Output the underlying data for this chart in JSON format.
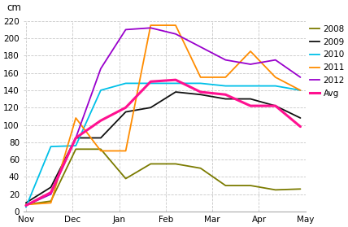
{
  "title": "cm",
  "background_color": "#ffffff",
  "grid_color": "#c8c8c8",
  "ylim": [
    0,
    220
  ],
  "yticks": [
    0,
    20,
    40,
    60,
    80,
    100,
    120,
    140,
    160,
    180,
    200,
    220
  ],
  "series": {
    "2008": {
      "color": "#7b7b00",
      "linewidth": 1.3,
      "x": [
        0,
        0.5,
        1,
        1.5,
        2,
        2.5,
        3,
        3.5,
        4,
        4.5,
        5,
        5.5
      ],
      "y": [
        8,
        12,
        72,
        72,
        38,
        55,
        55,
        50,
        30,
        30,
        25,
        26
      ]
    },
    "2009": {
      "color": "#111111",
      "linewidth": 1.3,
      "x": [
        0,
        0.5,
        1,
        1.5,
        2,
        2.5,
        3,
        3.5,
        4,
        4.5,
        5,
        5.5
      ],
      "y": [
        10,
        28,
        85,
        85,
        115,
        120,
        138,
        135,
        130,
        130,
        122,
        108
      ]
    },
    "2010": {
      "color": "#00c0e8",
      "linewidth": 1.3,
      "x": [
        0,
        0.5,
        1,
        1.5,
        2,
        2.5,
        3,
        3.5,
        4,
        4.5,
        5,
        5.5
      ],
      "y": [
        5,
        75,
        76,
        140,
        148,
        148,
        148,
        148,
        145,
        145,
        145,
        140
      ]
    },
    "2011": {
      "color": "#ff8c00",
      "linewidth": 1.3,
      "x": [
        0,
        0.5,
        1,
        1.5,
        2,
        2.5,
        3,
        3.5,
        4,
        4.5,
        5,
        5.5
      ],
      "y": [
        8,
        10,
        108,
        70,
        70,
        215,
        215,
        155,
        155,
        185,
        155,
        140
      ]
    },
    "2012": {
      "color": "#9900cc",
      "linewidth": 1.3,
      "x": [
        0,
        0.5,
        1,
        1.5,
        2,
        2.5,
        3,
        3.5,
        4,
        4.5,
        5,
        5.5
      ],
      "y": [
        7,
        20,
        85,
        165,
        210,
        212,
        205,
        190,
        175,
        170,
        175,
        155
      ]
    },
    "Avg": {
      "color": "#ff1090",
      "linewidth": 2.2,
      "x": [
        0,
        0.5,
        1,
        1.5,
        2,
        2.5,
        3,
        3.5,
        4,
        4.5,
        5,
        5.5
      ],
      "y": [
        7,
        22,
        85,
        105,
        120,
        150,
        152,
        138,
        135,
        122,
        122,
        98
      ]
    }
  },
  "month_positions": [
    0,
    1,
    2,
    3,
    4,
    5,
    6
  ],
  "month_labels": [
    "Nov",
    "Dec",
    "Jan",
    "Feb",
    "Mar",
    "Apr",
    "May"
  ],
  "month_x": [
    0,
    0.93,
    1.87,
    2.8,
    3.73,
    4.67,
    5.6
  ],
  "xlim": [
    0,
    5.6
  ],
  "legend_order": [
    "2008",
    "2009",
    "2010",
    "2011",
    "2012",
    "Avg"
  ]
}
